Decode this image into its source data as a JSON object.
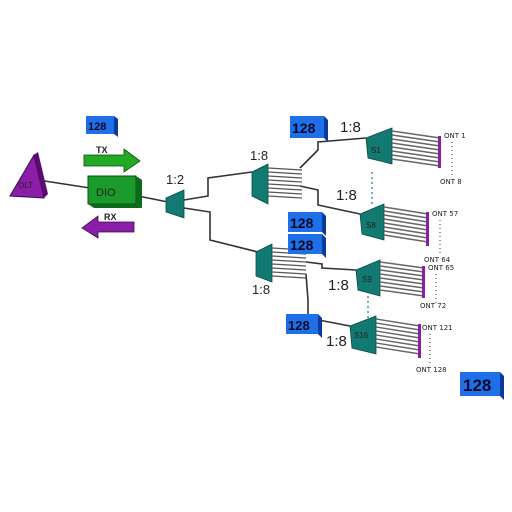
{
  "olt": {
    "label": "OLT",
    "color": "#8a1ea8"
  },
  "dio": {
    "label": "DIO",
    "color": "#1a9a2a"
  },
  "tx": {
    "label": "TX",
    "color": "#22aa22"
  },
  "rx": {
    "label": "RX",
    "color": "#8a1ea8"
  },
  "splitter_color": "#127a72",
  "badge_color": "#1f6fe8",
  "ratios": {
    "main": "1:2",
    "branch_top": "1:8",
    "branch_bottom": "1:8",
    "s1": "1:8",
    "s8": "1:8",
    "s9": "1:8",
    "s16": "1:8"
  },
  "splitters": {
    "s1": "S1",
    "s8": "S8",
    "s9": "S9",
    "s16": "S16"
  },
  "badges": {
    "left": "128",
    "top": "128",
    "mid_a": "128",
    "mid_b": "128",
    "bottom": "128",
    "bottom_right": "128"
  },
  "onts": {
    "s1_first": "ONT 1",
    "s1_last": "ONT 8",
    "s8_first": "ONT 57",
    "s8_last": "ONT 64",
    "s9_first": "ONT 65",
    "s9_last": "ONT 72",
    "s16_first": "ONT 121",
    "s16_last": "ONT 128"
  }
}
